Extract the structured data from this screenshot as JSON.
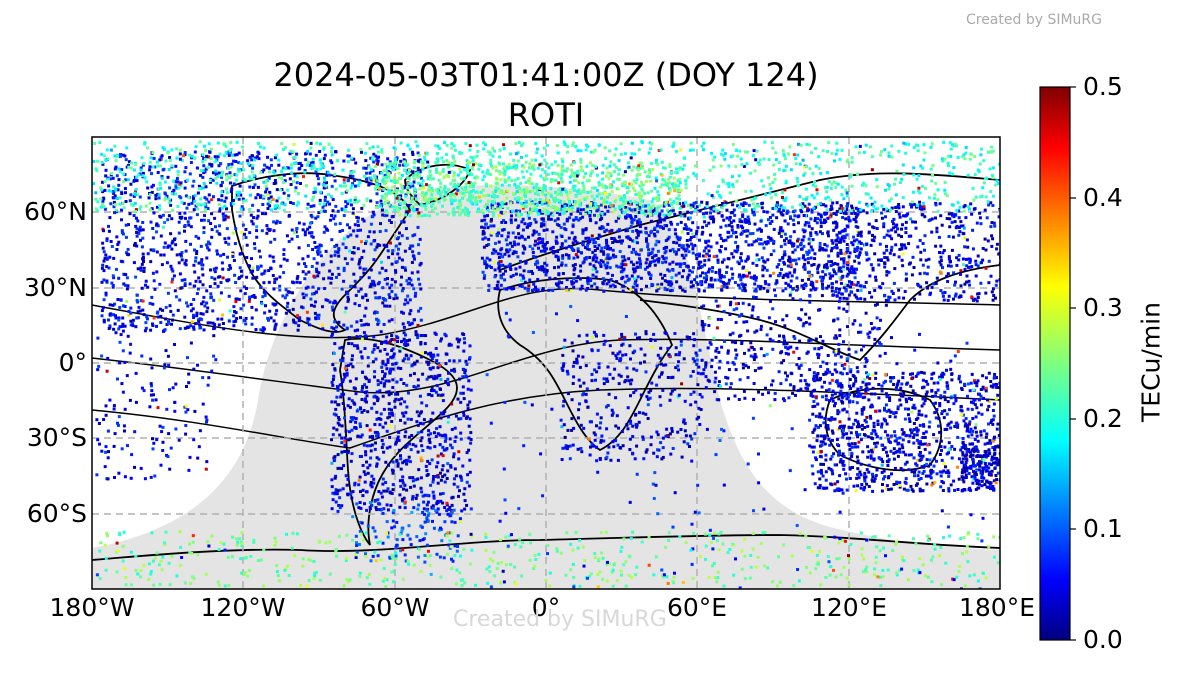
{
  "watermark": "Created by SIMuRG",
  "title": {
    "line1": "2024-05-03T01:41:00Z (DOY 124)",
    "line2": "ROTI"
  },
  "map": {
    "lon_range": [
      -180,
      180
    ],
    "lat_range": [
      -90,
      90
    ],
    "lat_ticks": [
      "60°N",
      "30°N",
      "0°",
      "30°S",
      "60°S"
    ],
    "lon_ticks": [
      "180°W",
      "120°W",
      "60°W",
      "0°",
      "60°E",
      "120°E",
      "180°E"
    ],
    "gridlines": "dashed"
  },
  "colorbar": {
    "label": "TECu/min",
    "ticks": [
      "0.0",
      "0.1",
      "0.2",
      "0.3",
      "0.4",
      "0.5"
    ],
    "range": [
      0.0,
      0.5
    ],
    "colormap": "jet"
  },
  "colors": {
    "night_shade": "#e4e4e4",
    "grid": "#b0b0b0",
    "coast": "#000000"
  }
}
